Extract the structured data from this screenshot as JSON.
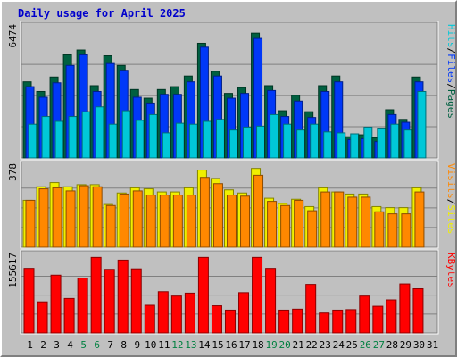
{
  "title": "Daily usage for April 2025",
  "colors": {
    "hits": "#00c8d8",
    "files": "#0038f8",
    "pages": "#006040",
    "visits": "#f0f000",
    "sites": "#ff8800",
    "kbytes": "#ff0000",
    "weekend_day": "#008040",
    "weekday": "#000000"
  },
  "chart_data": [
    {
      "type": "bar",
      "panel": "hits-files-pages",
      "x": [
        1,
        2,
        3,
        4,
        5,
        6,
        7,
        8,
        9,
        10,
        11,
        12,
        13,
        14,
        15,
        16,
        17,
        18,
        19,
        20,
        21,
        22,
        23,
        24,
        25,
        26,
        27,
        28,
        29,
        30
      ],
      "ymax_label": "6474",
      "ymax": 6474,
      "legend": [
        "Pages",
        "/",
        "Files",
        "/",
        "Hits"
      ],
      "series": [
        {
          "name": "Pages",
          "values": [
            3950,
            3450,
            4200,
            5350,
            5600,
            3750,
            5300,
            4800,
            3550,
            3100,
            3550,
            3700,
            4250,
            5950,
            4500,
            3350,
            3650,
            6474,
            3750,
            2450,
            3250,
            2400,
            3750,
            4250,
            1100,
            1200,
            1050,
            2500,
            2000,
            4200
          ]
        },
        {
          "name": "Files",
          "values": [
            3700,
            3150,
            3900,
            4800,
            5350,
            3450,
            4900,
            4550,
            3150,
            2850,
            3300,
            3300,
            3950,
            5750,
            4250,
            3100,
            3350,
            6200,
            3500,
            2150,
            2950,
            2100,
            3450,
            3950,
            950,
            1000,
            850,
            2250,
            1850,
            3950
          ]
        },
        {
          "name": "Hits",
          "values": [
            1750,
            2150,
            1900,
            2150,
            2400,
            2650,
            1750,
            2450,
            1950,
            2250,
            1300,
            1800,
            1750,
            1900,
            2000,
            1450,
            1600,
            1650,
            2250,
            1750,
            1450,
            1750,
            1350,
            1300,
            1250,
            1600,
            1550,
            1750,
            1450,
            3450
          ]
        }
      ]
    },
    {
      "type": "bar",
      "panel": "visits-sites",
      "x": [
        1,
        2,
        3,
        4,
        5,
        6,
        7,
        8,
        9,
        10,
        11,
        12,
        13,
        14,
        15,
        16,
        17,
        18,
        19,
        20,
        21,
        22,
        23,
        24,
        25,
        26,
        27,
        28,
        29,
        30
      ],
      "ymax_label": "378",
      "ymax": 378,
      "legend": [
        "Sites",
        "/",
        "Visits"
      ],
      "series": [
        {
          "name": "Visits",
          "values": [
            225,
            290,
            310,
            290,
            300,
            300,
            205,
            260,
            285,
            280,
            265,
            265,
            285,
            370,
            330,
            275,
            260,
            378,
            235,
            210,
            230,
            195,
            285,
            265,
            255,
            255,
            195,
            190,
            190,
            285
          ]
        },
        {
          "name": "Sites",
          "values": [
            225,
            280,
            285,
            270,
            295,
            290,
            200,
            255,
            270,
            250,
            250,
            250,
            250,
            335,
            305,
            250,
            245,
            345,
            220,
            200,
            225,
            175,
            265,
            265,
            240,
            240,
            170,
            160,
            160,
            265
          ]
        }
      ]
    },
    {
      "type": "bar",
      "panel": "kbytes",
      "x": [
        1,
        2,
        3,
        4,
        5,
        6,
        7,
        8,
        9,
        10,
        11,
        12,
        13,
        14,
        15,
        16,
        17,
        18,
        19,
        20,
        21,
        22,
        23,
        24,
        25,
        26,
        27,
        28,
        29,
        30
      ],
      "ymax_label": "155617",
      "ymax": 155617,
      "legend": [
        "KBytes"
      ],
      "series": [
        {
          "name": "KBytes",
          "values": [
            133000,
            64000,
            119000,
            71000,
            113000,
            155617,
            131000,
            150000,
            132000,
            57000,
            85000,
            76000,
            82000,
            155617,
            56000,
            47000,
            83000,
            155617,
            133000,
            47000,
            49000,
            100000,
            41000,
            47000,
            48000,
            76000,
            55000,
            68000,
            101000,
            91000
          ]
        }
      ]
    }
  ],
  "x_axis": {
    "labels": [
      "1",
      "2",
      "3",
      "4",
      "5",
      "6",
      "7",
      "8",
      "9",
      "10",
      "11",
      "12",
      "13",
      "14",
      "15",
      "16",
      "17",
      "18",
      "19",
      "20",
      "21",
      "22",
      "23",
      "24",
      "25",
      "26",
      "27",
      "28",
      "29",
      "30",
      "31"
    ],
    "weekend_days": [
      5,
      6,
      12,
      13,
      19,
      20,
      26,
      27
    ]
  }
}
